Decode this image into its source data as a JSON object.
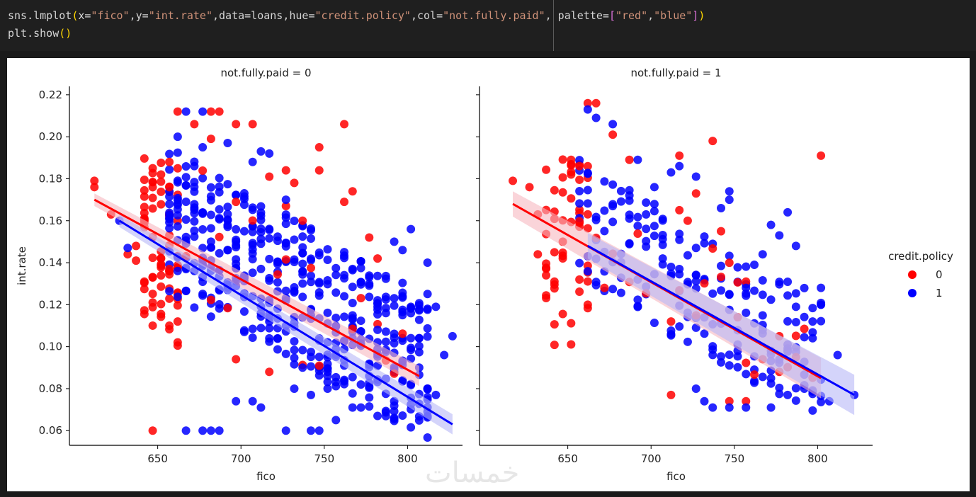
{
  "code": {
    "line1": [
      {
        "t": "sns.lmplot",
        "c": ""
      },
      {
        "t": "(",
        "c": "par"
      },
      {
        "t": "x=",
        "c": ""
      },
      {
        "t": "\"fico\"",
        "c": "str"
      },
      {
        "t": ",y=",
        "c": ""
      },
      {
        "t": "\"int.rate\"",
        "c": "str"
      },
      {
        "t": ",data=loans,hue=",
        "c": ""
      },
      {
        "t": "\"credit.policy\"",
        "c": "str"
      },
      {
        "t": ",col=",
        "c": ""
      },
      {
        "t": "\"not.fully.paid\"",
        "c": "str"
      },
      {
        "t": ", palette=",
        "c": ""
      },
      {
        "t": "[",
        "c": "brk"
      },
      {
        "t": "\"red\"",
        "c": "str"
      },
      {
        "t": ",",
        "c": ""
      },
      {
        "t": "\"blue\"",
        "c": "str"
      },
      {
        "t": "]",
        "c": "brk"
      },
      {
        "t": ")",
        "c": "par"
      }
    ],
    "line2": [
      {
        "t": "plt.show",
        "c": ""
      },
      {
        "t": "()",
        "c": "par"
      }
    ]
  },
  "watermark": "خمسات",
  "colors": {
    "red": "#ff0000",
    "blue": "#0000ff",
    "pink_band": "#f6b8bf",
    "blue_band": "#b8b8f6"
  },
  "chart_data": [
    {
      "type": "scatter",
      "title": "not.fully.paid = 0",
      "xlabel": "fico",
      "ylabel": "int.rate",
      "xlim": [
        597,
        833
      ],
      "ylim": [
        0.053,
        0.224
      ],
      "xticks": [
        650,
        700,
        750,
        800
      ],
      "yticks": [
        0.06,
        0.08,
        0.1,
        0.12,
        0.14,
        0.16,
        0.18,
        0.2,
        0.22
      ],
      "series": [
        {
          "name": "0",
          "color": "red",
          "regression": {
            "x": [
              612,
              807
            ],
            "y": [
              0.17,
              0.086
            ]
          },
          "points": [
            [
              612,
              0.179
            ],
            [
              612,
              0.176
            ],
            [
              622,
              0.163
            ],
            [
              632,
              0.144
            ],
            [
              637,
              0.148
            ],
            [
              637,
              0.141
            ],
            [
              642,
              0.131
            ],
            [
              647,
              0.185
            ],
            [
              652,
              0.182
            ],
            [
              657,
              0.188
            ],
            [
              657,
              0.176
            ],
            [
              662,
              0.212
            ],
            [
              672,
              0.206
            ],
            [
              682,
              0.212
            ],
            [
              687,
              0.212
            ],
            [
              682,
              0.199
            ],
            [
              697,
              0.206
            ],
            [
              707,
              0.206
            ],
            [
              717,
              0.181
            ],
            [
              727,
              0.184
            ],
            [
              732,
              0.178
            ],
            [
              747,
              0.195
            ],
            [
              747,
              0.184
            ],
            [
              762,
              0.206
            ],
            [
              767,
              0.174
            ],
            [
              762,
              0.169
            ],
            [
              777,
              0.152
            ],
            [
              782,
              0.142
            ],
            [
              737,
              0.16
            ],
            [
              727,
              0.167
            ],
            [
              697,
              0.094
            ],
            [
              717,
              0.088
            ],
            [
              647,
              0.06
            ],
            [
              652,
              0.142
            ],
            [
              642,
              0.16
            ],
            [
              657,
              0.137
            ]
          ]
        },
        {
          "name": "1",
          "color": "blue",
          "regression": {
            "x": [
              627,
              827
            ],
            "y": [
              0.16,
              0.063
            ]
          },
          "points": [
            [
              627,
              0.16
            ],
            [
              632,
              0.147
            ],
            [
              667,
              0.212
            ],
            [
              677,
              0.212
            ],
            [
              667,
              0.06
            ],
            [
              677,
              0.06
            ],
            [
              682,
              0.06
            ],
            [
              687,
              0.06
            ],
            [
              727,
              0.06
            ],
            [
              742,
              0.06
            ],
            [
              747,
              0.06
            ],
            [
              697,
              0.074
            ],
            [
              707,
              0.074
            ],
            [
              712,
              0.071
            ],
            [
              802,
              0.156
            ],
            [
              812,
              0.14
            ],
            [
              817,
              0.119
            ],
            [
              827,
              0.105
            ],
            [
              822,
              0.096
            ],
            [
              807,
              0.09
            ],
            [
              812,
              0.08
            ],
            [
              817,
              0.077
            ],
            [
              792,
              0.074
            ],
            [
              782,
              0.067
            ],
            [
              772,
              0.071
            ],
            [
              752,
              0.08
            ],
            [
              767,
              0.071
            ],
            [
              757,
              0.065
            ],
            [
              742,
              0.077
            ],
            [
              732,
              0.08
            ],
            [
              752,
              0.088
            ],
            [
              737,
              0.09
            ],
            [
              762,
              0.124
            ],
            [
              777,
              0.133
            ],
            [
              792,
              0.15
            ],
            [
              797,
              0.146
            ],
            [
              797,
              0.115
            ],
            [
              787,
              0.116
            ],
            [
              782,
              0.108
            ],
            [
              767,
              0.104
            ],
            [
              717,
              0.192
            ],
            [
              727,
              0.17
            ],
            [
              712,
              0.193
            ],
            [
              707,
              0.188
            ],
            [
              692,
              0.197
            ],
            [
              677,
              0.195
            ],
            [
              672,
              0.186
            ],
            [
              662,
              0.2
            ]
          ]
        }
      ]
    },
    {
      "type": "scatter",
      "title": "not.fully.paid = 1",
      "xlabel": "fico",
      "ylabel": "",
      "xlim": [
        597,
        833
      ],
      "ylim": [
        0.053,
        0.224
      ],
      "xticks": [
        650,
        700,
        750,
        800
      ],
      "yticks": [
        0.06,
        0.08,
        0.1,
        0.12,
        0.14,
        0.16,
        0.18,
        0.2,
        0.22
      ],
      "series": [
        {
          "name": "0",
          "color": "red",
          "regression": {
            "x": [
              617,
              802
            ],
            "y": [
              0.168,
              0.085
            ]
          },
          "points": [
            [
              617,
              0.179
            ],
            [
              627,
              0.176
            ],
            [
              632,
              0.163
            ],
            [
              632,
              0.144
            ],
            [
              637,
              0.134
            ],
            [
              642,
              0.131
            ],
            [
              647,
              0.15
            ],
            [
              652,
              0.182
            ],
            [
              657,
              0.186
            ],
            [
              662,
              0.216
            ],
            [
              667,
              0.216
            ],
            [
              677,
              0.201
            ],
            [
              687,
              0.189
            ],
            [
              737,
              0.198
            ],
            [
              717,
              0.191
            ],
            [
              802,
              0.191
            ],
            [
              717,
              0.165
            ],
            [
              722,
              0.16
            ],
            [
              727,
              0.173
            ],
            [
              742,
              0.155
            ],
            [
              752,
              0.114
            ],
            [
              757,
              0.131
            ],
            [
              712,
              0.077
            ],
            [
              747,
              0.074
            ],
            [
              757,
              0.074
            ],
            [
              767,
              0.094
            ],
            [
              777,
              0.105
            ],
            [
              787,
              0.095
            ],
            [
              662,
              0.12
            ],
            [
              672,
              0.128
            ]
          ]
        },
        {
          "name": "1",
          "color": "blue",
          "regression": {
            "x": [
              662,
              822
            ],
            "y": [
              0.148,
              0.077
            ]
          },
          "points": [
            [
              662,
              0.213
            ],
            [
              667,
              0.209
            ],
            [
              677,
              0.206
            ],
            [
              692,
              0.189
            ],
            [
              712,
              0.183
            ],
            [
              717,
              0.186
            ],
            [
              727,
              0.181
            ],
            [
              747,
              0.174
            ],
            [
              772,
              0.158
            ],
            [
              782,
              0.164
            ],
            [
              777,
              0.153
            ],
            [
              787,
              0.148
            ],
            [
              802,
              0.128
            ],
            [
              802,
              0.12
            ],
            [
              812,
              0.096
            ],
            [
              822,
              0.077
            ],
            [
              807,
              0.074
            ],
            [
              792,
              0.08
            ],
            [
              782,
              0.077
            ],
            [
              772,
              0.071
            ],
            [
              757,
              0.071
            ],
            [
              747,
              0.071
            ],
            [
              737,
              0.071
            ],
            [
              732,
              0.074
            ],
            [
              727,
              0.08
            ],
            [
              752,
              0.101
            ],
            [
              767,
              0.108
            ],
            [
              787,
              0.119
            ],
            [
              797,
              0.112
            ],
            [
              797,
              0.104
            ],
            [
              782,
              0.101
            ],
            [
              772,
              0.098
            ],
            [
              757,
              0.128
            ],
            [
              762,
              0.139
            ],
            [
              767,
              0.144
            ],
            [
              742,
              0.166
            ],
            [
              747,
              0.17
            ],
            [
              727,
              0.147
            ],
            [
              717,
              0.137
            ],
            [
              707,
              0.142
            ],
            [
              697,
              0.163
            ],
            [
              687,
              0.172
            ],
            [
              702,
              0.176
            ]
          ]
        }
      ]
    }
  ],
  "legend": {
    "title": "credit.policy",
    "entries": [
      {
        "label": "0",
        "color": "red"
      },
      {
        "label": "1",
        "color": "blue"
      }
    ]
  }
}
